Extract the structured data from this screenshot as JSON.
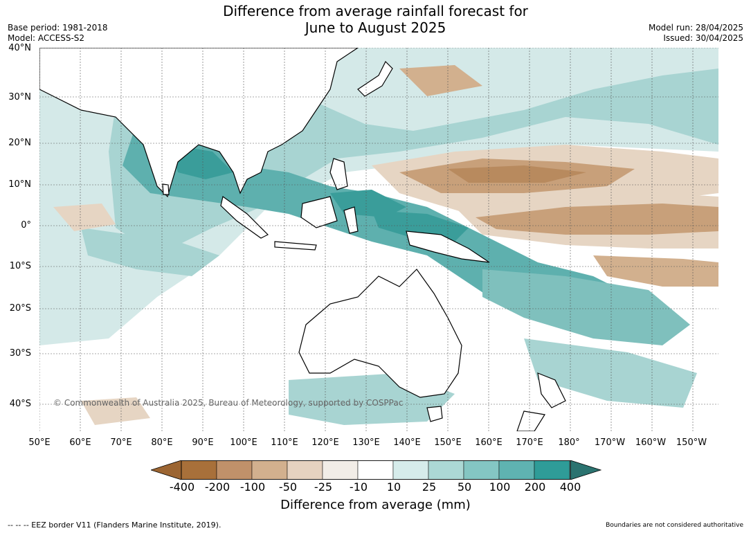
{
  "header": {
    "title_line1": "Difference from average rainfall forecast for",
    "title_line2": "June to August 2025",
    "base_period": "Base period: 1981-2018",
    "model": "Model: ACCESS-S2",
    "model_run": "Model run: 28/04/2025",
    "issued": "Issued: 30/04/2025"
  },
  "map": {
    "lat_labels": [
      "40°N",
      "30°N",
      "20°N",
      "10°N",
      "0°",
      "10°S",
      "20°S",
      "30°S",
      "40°S"
    ],
    "lon_labels": [
      "50°E",
      "60°E",
      "70°E",
      "80°E",
      "90°E",
      "100°E",
      "110°E",
      "120°E",
      "130°E",
      "140°E",
      "150°E",
      "160°E",
      "170°E",
      "180°",
      "170°W",
      "160°W",
      "150°W"
    ],
    "copyright": "© Commonwealth of Australia 2025, Bureau of Meteorology, supported by COSPPac",
    "colors": {
      "ocean": "#ffffff",
      "land_outline": "#000000",
      "dry_strong": "#b07840",
      "dry_moderate": "#c8a07a",
      "dry_weak": "#e6d5c3",
      "neutral_dry": "#f3efe9",
      "wet_weak": "#d4e9e8",
      "wet_moderate": "#a8d4d2",
      "wet_strong": "#5eb0ae",
      "wet_very_strong": "#3a9d9a"
    }
  },
  "legend": {
    "title": "Difference from average (mm)",
    "ticks": [
      "-400",
      "-200",
      "-100",
      "-50",
      "-25",
      "-10",
      "10",
      "25",
      "50",
      "100",
      "200",
      "400"
    ],
    "colors": [
      "#a8703a",
      "#c0916a",
      "#d2b08e",
      "#e6d2c0",
      "#f2ede7",
      "#ffffff",
      "#d6eceb",
      "#acd8d5",
      "#84c6c3",
      "#5fb3b1",
      "#2f9c98",
      "#2b7370"
    ],
    "extend_low_color": "#9c6532",
    "extend_high_color": "#2b7370"
  },
  "footer": {
    "eez_note": "-- -- -- EEZ border V11 (Flanders Marine Institute, 2019).",
    "boundaries_note": "Boundaries are not considered authoritative"
  }
}
